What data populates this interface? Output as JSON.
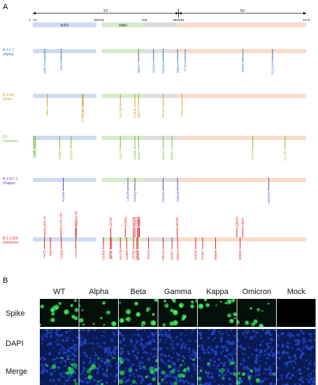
{
  "panel_a_label": "A",
  "panel_b_label": "B",
  "spike_map": {
    "length": 1273,
    "segments": [
      {
        "name": "S1",
        "start": 14,
        "end": 685
      },
      {
        "name": "S2",
        "start": 686,
        "end": 1273
      }
    ],
    "domains": [
      {
        "name": "NTD",
        "start": 14,
        "end": 306,
        "color": "#cfdcf0"
      },
      {
        "name": "RBD",
        "start": 331,
        "end": 528,
        "color": "#d5ecc9"
      },
      {
        "name": "",
        "start": 528,
        "end": 685,
        "color": "#dedede"
      },
      {
        "name": "",
        "start": 686,
        "end": 1273,
        "color": "#fbdccb"
      }
    ],
    "ticks": [
      {
        "label": "1",
        "pos": 1
      },
      {
        "label": "14",
        "pos": 14
      },
      {
        "label": "306",
        "pos": 306
      },
      {
        "label": "331",
        "pos": 331
      },
      {
        "label": "528",
        "pos": 528
      },
      {
        "label": "685/686",
        "pos": 685
      },
      {
        "label": "1273",
        "pos": 1273
      }
    ]
  },
  "variants": [
    {
      "name": "B.1.1.7",
      "sub": "(Alpha)",
      "color": "#3a6fc4",
      "mutations": [
        {
          "label": "Δ69-70",
          "pos": 69
        },
        {
          "label": "Δ144",
          "pos": 144
        },
        {
          "label": "N501Y",
          "pos": 501
        },
        {
          "label": "A570D",
          "pos": 570
        },
        {
          "label": "D614G",
          "pos": 614
        },
        {
          "label": "P681H",
          "pos": 681
        },
        {
          "label": "T716I",
          "pos": 716
        },
        {
          "label": "S982A",
          "pos": 982
        },
        {
          "label": "D1118H",
          "pos": 1118
        }
      ]
    },
    {
      "name": "B.1.351",
      "sub": "(Beta)",
      "color": "#c9a227",
      "mutations": [
        {
          "label": "D80A",
          "pos": 80
        },
        {
          "label": "Δ242-244",
          "pos": 242
        },
        {
          "label": "R246I",
          "pos": 246
        },
        {
          "label": "K417N",
          "pos": 417
        },
        {
          "label": "E484K",
          "pos": 484
        },
        {
          "label": "N501Y",
          "pos": 501
        },
        {
          "label": "D614G",
          "pos": 614
        },
        {
          "label": "A701V",
          "pos": 701
        }
      ]
    },
    {
      "name": "P.1",
      "sub": "(Gamma)",
      "color": "#7bb84a",
      "mutations": [
        {
          "label": "L18F",
          "pos": 18
        },
        {
          "label": "T20N",
          "pos": 20
        },
        {
          "label": "P26S",
          "pos": 26
        },
        {
          "label": "D138Y",
          "pos": 138
        },
        {
          "label": "R190S",
          "pos": 190
        },
        {
          "label": "K417T",
          "pos": 417
        },
        {
          "label": "E484K",
          "pos": 484
        },
        {
          "label": "N501Y",
          "pos": 501
        },
        {
          "label": "D614G",
          "pos": 614
        },
        {
          "label": "H655Y",
          "pos": 655
        },
        {
          "label": "T1027I",
          "pos": 1027
        },
        {
          "label": "V1176F",
          "pos": 1176
        }
      ]
    },
    {
      "name": "B.1.617.1",
      "sub": "(Kappa)",
      "color": "#6a3fb5",
      "mutations": [
        {
          "label": "E154K",
          "pos": 154
        },
        {
          "label": "L452R",
          "pos": 452
        },
        {
          "label": "E484Q",
          "pos": 484
        },
        {
          "label": "D614G",
          "pos": 614
        },
        {
          "label": "P681R",
          "pos": 681
        },
        {
          "label": "H1101D",
          "pos": 1101
        }
      ]
    },
    {
      "name": "B.1.1.529",
      "sub": "(Omicron)",
      "color": "#e02020",
      "mutations": [
        {
          "label": "A67V",
          "pos": 67,
          "row": 0
        },
        {
          "label": "Δ69-70",
          "pos": 69,
          "row": 1
        },
        {
          "label": "T95I",
          "pos": 95,
          "row": 0
        },
        {
          "label": "Y145D",
          "pos": 145,
          "row": 0
        },
        {
          "label": "Δ142-144",
          "pos": 143,
          "row": 1
        },
        {
          "label": "Δ211",
          "pos": 211,
          "row": 1
        },
        {
          "label": "L212I",
          "pos": 212,
          "row": 0
        },
        {
          "label": "ins214EPE",
          "pos": 214,
          "row": 1
        },
        {
          "label": "G339D",
          "pos": 339,
          "row": 0
        },
        {
          "label": "S371L",
          "pos": 371,
          "row": 0
        },
        {
          "label": "S373P",
          "pos": 373,
          "row": 1
        },
        {
          "label": "S375F",
          "pos": 375,
          "row": 0
        },
        {
          "label": "K417N",
          "pos": 417,
          "row": 0
        },
        {
          "label": "N440K",
          "pos": 440,
          "row": 1
        },
        {
          "label": "G446S",
          "pos": 446,
          "row": 0
        },
        {
          "label": "S477N",
          "pos": 477,
          "row": 1
        },
        {
          "label": "T478K",
          "pos": 478,
          "row": 0
        },
        {
          "label": "E484A",
          "pos": 484,
          "row": 1
        },
        {
          "label": "Q493R",
          "pos": 493,
          "row": 0
        },
        {
          "label": "G496S",
          "pos": 496,
          "row": 1
        },
        {
          "label": "Q498R",
          "pos": 498,
          "row": 0
        },
        {
          "label": "N501Y",
          "pos": 501,
          "row": 1
        },
        {
          "label": "Y505H",
          "pos": 505,
          "row": 1
        },
        {
          "label": "T547K",
          "pos": 547,
          "row": 0
        },
        {
          "label": "D614G",
          "pos": 614,
          "row": 0
        },
        {
          "label": "H655Y",
          "pos": 655,
          "row": 0
        },
        {
          "label": "N679K",
          "pos": 679,
          "row": 1
        },
        {
          "label": "P681H",
          "pos": 681,
          "row": 0
        },
        {
          "label": "N764K",
          "pos": 764,
          "row": 0
        },
        {
          "label": "D796Y",
          "pos": 796,
          "row": 0
        },
        {
          "label": "N856K",
          "pos": 856,
          "row": 0
        },
        {
          "label": "Q954H",
          "pos": 954,
          "row": 1
        },
        {
          "label": "N969K",
          "pos": 969,
          "row": 0
        },
        {
          "label": "L981F",
          "pos": 981,
          "row": 1
        }
      ]
    }
  ],
  "micrographs": {
    "columns": [
      "WT",
      "Alpha",
      "Beta",
      "Gamma",
      "Kappa",
      "Omicron",
      "Mock"
    ],
    "rows": [
      "Spike",
      "DAPI",
      "Merge"
    ],
    "colors": {
      "spike": "#22d34a",
      "dapi": "#2246c8",
      "bg": "#040708"
    }
  }
}
